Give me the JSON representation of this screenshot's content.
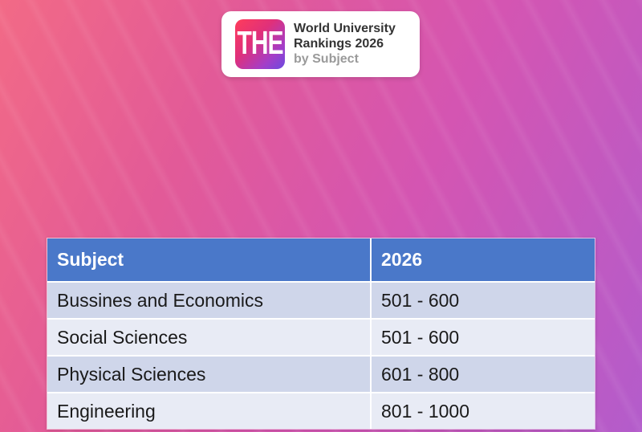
{
  "logo": {
    "mark_text": "THE",
    "line1": "World University",
    "line2": "Rankings 2026",
    "line3": "by Subject"
  },
  "table": {
    "headers": [
      "Subject",
      "2026"
    ],
    "rows": [
      [
        "Bussines and Economics",
        "501 - 600"
      ],
      [
        "Social Sciences",
        "501 - 600"
      ],
      [
        "Physical Sciences",
        "601 - 800"
      ],
      [
        "Engineering",
        "801 - 1000"
      ]
    ]
  },
  "colors": {
    "header_bg": "#4a78c9",
    "row_odd": "#cfd6ea",
    "row_even": "#e8ebf5"
  }
}
